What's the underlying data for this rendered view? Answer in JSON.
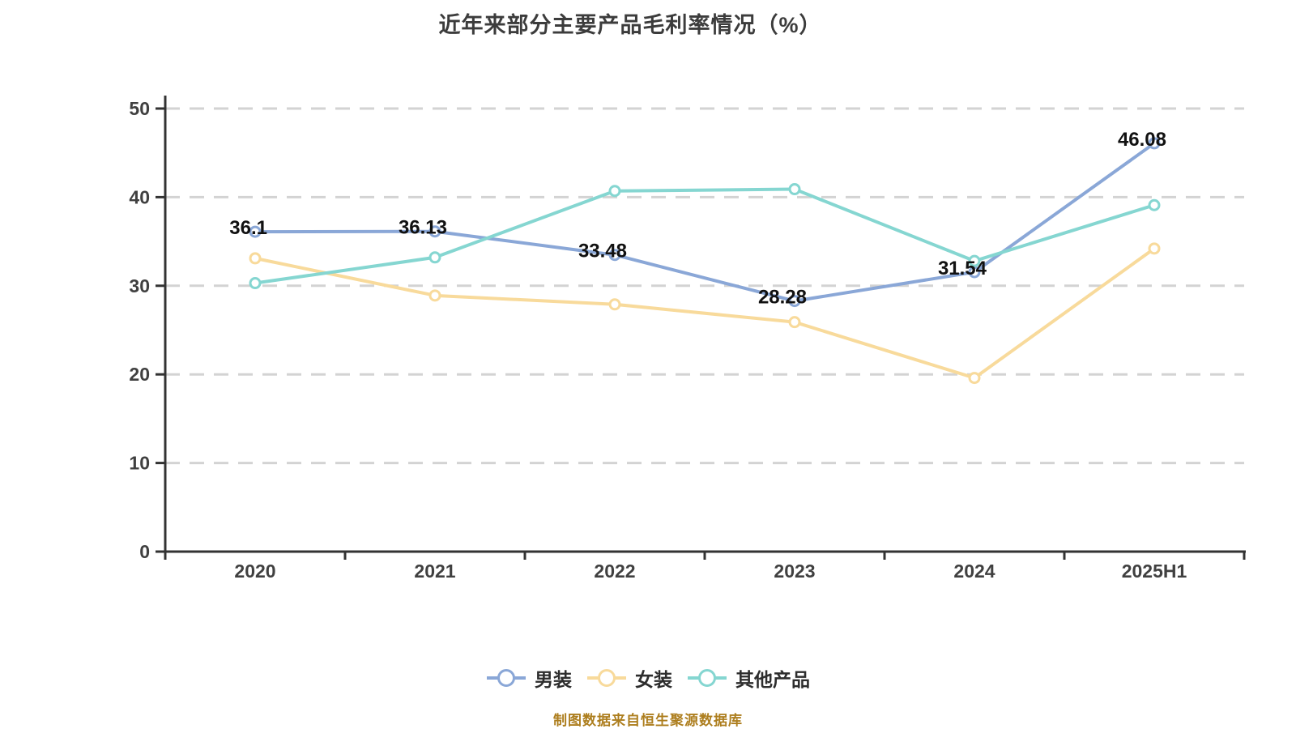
{
  "title": "近年来部分主要产品毛利率情况（%）",
  "source_note": "制图数据来自恒生聚源数据库",
  "chart_data": {
    "type": "line",
    "categories": [
      "2020",
      "2021",
      "2022",
      "2023",
      "2024",
      "2025H1"
    ],
    "series": [
      {
        "name": "男装",
        "color": "#8AA7D7",
        "values": [
          36.1,
          36.13,
          33.48,
          28.28,
          31.54,
          46.08
        ],
        "labels": [
          "36.1",
          "36.13",
          "33.48",
          "28.28",
          "31.54",
          "46.08"
        ]
      },
      {
        "name": "女装",
        "color": "#F8DA9B",
        "values": [
          33.1,
          28.9,
          27.9,
          25.9,
          19.6,
          34.2
        ],
        "labels": null
      },
      {
        "name": "其他产品",
        "color": "#85D6D1",
        "values": [
          30.3,
          33.2,
          40.7,
          40.9,
          32.8,
          39.1
        ],
        "labels": null
      }
    ],
    "ylim": [
      0,
      50
    ],
    "ytick_step": 10,
    "ytick_labels": [
      "0",
      "10",
      "20",
      "30",
      "40",
      "50"
    ],
    "grid": "horizontal-dashed",
    "legend_position": "bottom",
    "marker": "empty-circle",
    "colors": {
      "axis": "#333333",
      "grid": "#d3d3d3",
      "axis_label": "#404040",
      "value_label": "#111111",
      "title": "#3c3c3c",
      "source": "#ad7e1e",
      "marker_fill": "#ffffff"
    }
  }
}
